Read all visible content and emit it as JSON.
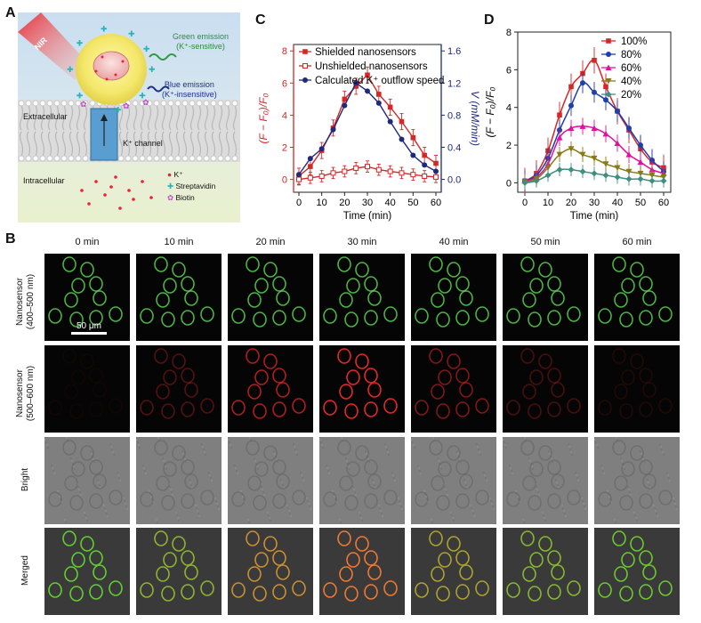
{
  "panels": {
    "a": "A",
    "b": "B",
    "c": "C",
    "d": "D"
  },
  "panelA": {
    "nir": "NIR",
    "green_emission": "Green emission",
    "green_note": "(K⁺-sensitive)",
    "blue_emission": "Blue emission",
    "blue_note": "(K⁺-insensitive)",
    "extracellular": "Extracellular",
    "intracellular": "Intracellular",
    "k_channel": "K⁺ channel",
    "legend_k": "K⁺",
    "legend_strep": "Streptavidin",
    "legend_biotin": "Biotin"
  },
  "chartC": {
    "legend": [
      "Shielded nanosensors",
      "Unshielded nanosensors",
      "Calculated K⁺ outflow speed"
    ],
    "xlabel": "Time (min)",
    "ylabel_left": "(F − F₀)/F₀",
    "ylabel_right": "V (mM/min)",
    "xticks": [
      "0",
      "10",
      "20",
      "30",
      "40",
      "50",
      "60"
    ],
    "yticks_left": [
      "0",
      "2",
      "4",
      "6",
      "8"
    ],
    "yticks_right": [
      "0.0",
      "0.4",
      "0.8",
      "1.2",
      "1.6"
    ]
  },
  "chartD": {
    "legend": [
      "100%",
      "80%",
      "60%",
      "40%",
      "20%"
    ],
    "xlabel": "Time (min)",
    "ylabel": "(F − F₀)/F₀",
    "xticks": [
      "0",
      "10",
      "20",
      "30",
      "40",
      "50",
      "60"
    ],
    "yticks": [
      "0",
      "2",
      "4",
      "6",
      "8"
    ]
  },
  "panelB": {
    "times": [
      "0 min",
      "10 min",
      "20 min",
      "30 min",
      "40 min",
      "50 min",
      "60 min"
    ],
    "rows": [
      "Nanosensor (400–500 nm)",
      "Nanosensor (500–600 nm)",
      "Bright",
      "Merged"
    ],
    "row_line1": [
      "Nanosensor",
      "Nanosensor",
      "Bright",
      "Merged"
    ],
    "row_line2": [
      "(400–500 nm)",
      "(500–600 nm)",
      "",
      ""
    ],
    "scale_bar": "50 μm"
  },
  "colors": {
    "red": "#d62728",
    "darkred": "#c0392b",
    "navy": "#1f2a7a",
    "pink": "#e0119c",
    "olive": "#8a7a16",
    "teal": "#3f8f7f",
    "blue": "#1f3faa"
  },
  "chart_data": [
    {
      "type": "line",
      "title": "C",
      "xlabel": "Time (min)",
      "ylabel": "(F - F0)/F0",
      "ylabel_right": "V (mM/min)",
      "xlim": [
        0,
        60
      ],
      "ylim": [
        -0.8,
        8.4
      ],
      "ylim_right": [
        -0.16,
        1.68
      ],
      "series": [
        {
          "name": "Shielded nanosensors",
          "axis": "left",
          "x": [
            0,
            5,
            10,
            15,
            20,
            25,
            30,
            35,
            40,
            45,
            50,
            55,
            60
          ],
          "values": [
            0.2,
            0.8,
            1.8,
            3.2,
            5.0,
            5.8,
            6.5,
            5.3,
            4.5,
            3.6,
            2.6,
            1.5,
            1.0
          ]
        },
        {
          "name": "Unshielded nanosensors",
          "axis": "left",
          "x": [
            0,
            5,
            10,
            15,
            20,
            25,
            30,
            35,
            40,
            45,
            50,
            55,
            60
          ],
          "values": [
            0.0,
            0.1,
            0.2,
            0.4,
            0.5,
            0.7,
            0.8,
            0.6,
            0.5,
            0.4,
            0.3,
            0.2,
            0.15
          ]
        },
        {
          "name": "Calculated K⁺ outflow speed",
          "axis": "right",
          "x": [
            0,
            5,
            10,
            15,
            20,
            25,
            30,
            35,
            40,
            45,
            50,
            55,
            60
          ],
          "values": [
            0.06,
            0.26,
            0.38,
            0.62,
            0.92,
            1.2,
            1.1,
            0.95,
            0.72,
            0.5,
            0.3,
            0.18,
            0.1
          ]
        }
      ]
    },
    {
      "type": "line",
      "title": "D",
      "xlabel": "Time (min)",
      "ylabel": "(F - F0)/F0",
      "xlim": [
        0,
        60
      ],
      "ylim": [
        -0.5,
        8
      ],
      "series": [
        {
          "name": "100%",
          "x": [
            0,
            5,
            10,
            15,
            20,
            25,
            30,
            35,
            40,
            45,
            50,
            55,
            60
          ],
          "values": [
            0.1,
            0.5,
            1.7,
            3.6,
            5.1,
            5.8,
            6.5,
            5.1,
            3.8,
            2.8,
            1.8,
            1.1,
            0.8
          ]
        },
        {
          "name": "80%",
          "x": [
            0,
            5,
            10,
            15,
            20,
            25,
            30,
            35,
            40,
            45,
            50,
            55,
            60
          ],
          "values": [
            0.1,
            0.4,
            1.3,
            2.8,
            4.1,
            5.3,
            4.8,
            4.4,
            3.8,
            2.9,
            2.0,
            1.2,
            0.6
          ]
        },
        {
          "name": "60%",
          "x": [
            0,
            5,
            10,
            15,
            20,
            25,
            30,
            35,
            40,
            45,
            50,
            55,
            60
          ],
          "values": [
            0.1,
            0.3,
            1.0,
            2.4,
            2.9,
            3.0,
            2.9,
            2.6,
            2.1,
            1.5,
            1.1,
            0.7,
            0.5
          ]
        },
        {
          "name": "40%",
          "x": [
            0,
            5,
            10,
            15,
            20,
            25,
            30,
            35,
            40,
            45,
            50,
            55,
            60
          ],
          "values": [
            0.05,
            0.2,
            0.8,
            1.5,
            1.8,
            1.5,
            1.3,
            1.0,
            0.8,
            0.6,
            0.5,
            0.4,
            0.3
          ]
        },
        {
          "name": "20%",
          "x": [
            0,
            5,
            10,
            15,
            20,
            25,
            30,
            35,
            40,
            45,
            50,
            55,
            60
          ],
          "values": [
            0.0,
            0.1,
            0.4,
            0.7,
            0.7,
            0.6,
            0.5,
            0.4,
            0.3,
            0.2,
            0.2,
            0.1,
            0.1
          ]
        }
      ]
    }
  ]
}
